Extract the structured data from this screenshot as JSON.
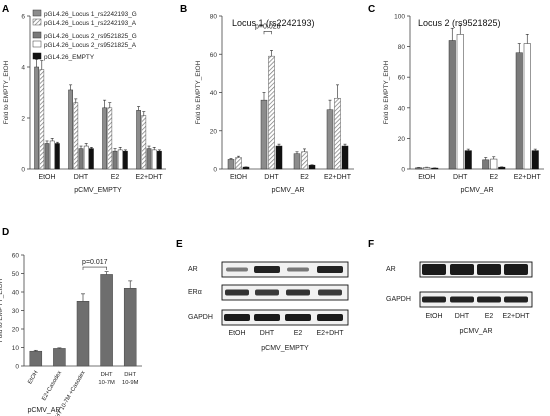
{
  "colors": {
    "locus1_g": "#8c8c8c",
    "locus1_a": "hatched-light",
    "locus2_g": "#7a7a7a",
    "locus2_a": "#ffffff",
    "empty": "#111111",
    "panel_d_bar": "#6e6e6e",
    "axis": "#444444"
  },
  "chart_data": [
    {
      "panel": "A",
      "type": "bar",
      "title": "",
      "ylabel": "Fold to EMPTY_EtOH",
      "xlabel": "pCMV_EMPTY",
      "ylim": [
        0,
        6
      ],
      "yticks": [
        "0",
        "2",
        "4",
        "6"
      ],
      "categories": [
        "EtOH",
        "DHT",
        "E2",
        "E2+DHT"
      ],
      "series": [
        {
          "name": "pGL4.26_Locus 1_rs2242193_G",
          "values": [
            4.0,
            3.1,
            2.4,
            2.3
          ],
          "errors": [
            0.3,
            0.2,
            0.3,
            0.15
          ]
        },
        {
          "name": "pGL4.26_Locus 1_rs2242193_A",
          "values": [
            3.9,
            2.6,
            2.4,
            2.1
          ],
          "errors": [
            0.35,
            0.15,
            0.2,
            0.15
          ]
        },
        {
          "name": "pGL4.26_Locus 2_rs9521825_G",
          "values": [
            1.0,
            0.8,
            0.7,
            0.8
          ],
          "errors": [
            0.1,
            0.1,
            0.1,
            0.1
          ]
        },
        {
          "name": "pGL4.26_Locus 2_rs9521825_A",
          "values": [
            1.1,
            0.9,
            0.75,
            0.75
          ],
          "errors": [
            0.1,
            0.1,
            0.1,
            0.1
          ]
        },
        {
          "name": "pGL4.26_EMPTY",
          "values": [
            1.0,
            0.8,
            0.7,
            0.7
          ],
          "errors": [
            0.05,
            0.05,
            0.05,
            0.05
          ]
        }
      ],
      "legend_position": "top-left"
    },
    {
      "panel": "B",
      "type": "bar",
      "title": "Locus 1 (rs2242193)",
      "ylabel": "Fold to EMPTY_EtOH",
      "xlabel": "pCMV_AR",
      "ylim": [
        0,
        80
      ],
      "yticks": [
        "0",
        "20",
        "40",
        "60",
        "80"
      ],
      "categories": [
        "EtOH",
        "DHT",
        "E2",
        "E2+DHT"
      ],
      "series": [
        {
          "name": "pGL4.26_Locus 1_rs2242193_G",
          "values": [
            5,
            36,
            8,
            31
          ],
          "errors": [
            0.5,
            4,
            1,
            5
          ]
        },
        {
          "name": "pGL4.26_Locus 1_rs2242193_A",
          "values": [
            6,
            59,
            9,
            37
          ],
          "errors": [
            0.7,
            3,
            1.5,
            7
          ]
        },
        {
          "name": "pGL4.26_EMPTY",
          "values": [
            1,
            12,
            2,
            12
          ],
          "errors": [
            0.1,
            1,
            0.2,
            1
          ]
        }
      ],
      "annotation": "p=0.028"
    },
    {
      "panel": "C",
      "type": "bar",
      "title": "Locus 2 (rs9521825)",
      "ylabel": "Fold to EMPTY_EtOH",
      "xlabel": "pCMV_AR",
      "ylim": [
        0,
        100
      ],
      "yticks": [
        "0",
        "20",
        "40",
        "60",
        "80",
        "100"
      ],
      "categories": [
        "EtOH",
        "DHT",
        "E2",
        "E2+DHT"
      ],
      "series": [
        {
          "name": "pGL4.26_Locus 2_rs9521825_G",
          "values": [
            0.8,
            84,
            6,
            76
          ],
          "errors": [
            0.2,
            8,
            1.5,
            6
          ]
        },
        {
          "name": "pGL4.26_Locus 2_rs9521825_A",
          "values": [
            1.0,
            88,
            6.5,
            82
          ],
          "errors": [
            0.2,
            6,
            1.5,
            6
          ]
        },
        {
          "name": "pGL4.26_EMPTY",
          "values": [
            0.6,
            12,
            1.2,
            12
          ],
          "errors": [
            0.1,
            1,
            0.2,
            1
          ]
        }
      ]
    },
    {
      "panel": "D",
      "type": "bar",
      "title": "",
      "ylabel": "Fold to EMPTY_EtOH",
      "xlabel": "pCMV_AR",
      "ylim": [
        0,
        60
      ],
      "yticks": [
        "0",
        "10",
        "20",
        "30",
        "40",
        "50",
        "60"
      ],
      "categories": [
        "EtOH",
        "E2+Casodex",
        "DHT 10-7M +Casodex",
        "DHT 10-7M",
        "DHT 10-9M"
      ],
      "values": [
        8,
        9.5,
        35,
        49.5,
        42
      ],
      "errors": [
        0.5,
        0.3,
        4,
        1.5,
        4
      ],
      "annotation": "p=0.017"
    }
  ],
  "panels": {
    "a": {
      "label": "A"
    },
    "b": {
      "label": "B"
    },
    "c": {
      "label": "C"
    },
    "d": {
      "label": "D"
    },
    "e": {
      "label": "E",
      "rows": [
        "AR",
        "ERα",
        "GAPDH"
      ],
      "lanes": [
        "EtOH",
        "DHT",
        "E2",
        "E2+DHT"
      ],
      "xlabel": "pCMV_EMPTY"
    },
    "f": {
      "label": "F",
      "rows": [
        "AR",
        "GAPDH"
      ],
      "lanes": [
        "EtOH",
        "DHT",
        "E2",
        "E2+DHT"
      ],
      "xlabel": "pCMV_AR"
    }
  }
}
